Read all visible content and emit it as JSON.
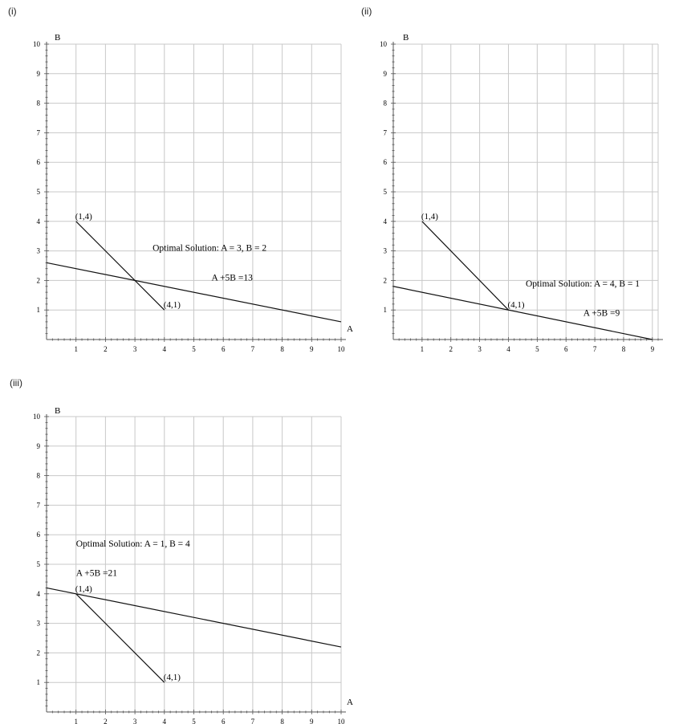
{
  "chart_data": [
    {
      "type": "line",
      "panel_label": "(i)",
      "xlabel": "A",
      "ylabel": "B",
      "xlim": [
        0,
        10
      ],
      "ylim": [
        0,
        10
      ],
      "grid": true,
      "x_ticks": [
        "1",
        "2",
        "3",
        "4",
        "5",
        "6",
        "7",
        "8",
        "9",
        "10"
      ],
      "y_ticks": [
        "1",
        "2",
        "3",
        "4",
        "5",
        "6",
        "7",
        "8",
        "9",
        "10"
      ],
      "series": [
        {
          "x": [
            1,
            4
          ],
          "y": [
            4,
            1
          ]
        },
        {
          "x": [
            0,
            10
          ],
          "y": [
            2.6,
            0.6
          ]
        }
      ],
      "points": [
        {
          "label": "(1,4)",
          "x": 1,
          "y": 4
        },
        {
          "label": "(4,1)",
          "x": 4,
          "y": 1
        }
      ],
      "annotations": [
        {
          "text": "Optimal Solution: A  = 3, B = 2",
          "x": 3.6,
          "y": 3.0
        },
        {
          "text": "A +5B =13",
          "x": 5.6,
          "y": 2.0
        }
      ]
    },
    {
      "type": "line",
      "panel_label": "(ii)",
      "xlabel": "",
      "ylabel": "B",
      "xlim": [
        0,
        9.2
      ],
      "ylim": [
        0,
        10
      ],
      "grid": true,
      "x_ticks": [
        "1",
        "2",
        "3",
        "4",
        "5",
        "6",
        "7",
        "8",
        "9"
      ],
      "y_ticks": [
        "1",
        "2",
        "3",
        "4",
        "5",
        "6",
        "7",
        "8",
        "9",
        "10"
      ],
      "series": [
        {
          "x": [
            1,
            4
          ],
          "y": [
            4,
            1
          ]
        },
        {
          "x": [
            0,
            9
          ],
          "y": [
            1.8,
            0
          ]
        }
      ],
      "points": [
        {
          "label": "(1,4)",
          "x": 1,
          "y": 4
        },
        {
          "label": "(4,1)",
          "x": 4,
          "y": 1
        }
      ],
      "annotations": [
        {
          "text": "Optimal Solution: A  = 4, B = 1",
          "x": 4.6,
          "y": 1.8
        },
        {
          "text": "A +5B =9",
          "x": 6.6,
          "y": 0.8
        }
      ]
    },
    {
      "type": "line",
      "panel_label": "(iii)",
      "xlabel": "A",
      "ylabel": "B",
      "xlim": [
        0,
        10
      ],
      "ylim": [
        0,
        10
      ],
      "grid": true,
      "x_ticks": [
        "1",
        "2",
        "3",
        "4",
        "5",
        "6",
        "7",
        "8",
        "9",
        "10"
      ],
      "y_ticks": [
        "1",
        "2",
        "3",
        "4",
        "5",
        "6",
        "7",
        "8",
        "9",
        "10"
      ],
      "series": [
        {
          "x": [
            1,
            4
          ],
          "y": [
            4,
            1
          ]
        },
        {
          "x": [
            0,
            10
          ],
          "y": [
            4.2,
            2.2
          ]
        }
      ],
      "points": [
        {
          "label": "(1,4)",
          "x": 1,
          "y": 4
        },
        {
          "label": "(4,1)",
          "x": 4,
          "y": 1
        }
      ],
      "annotations": [
        {
          "text": "Optimal Solution: A  = 1, B = 4",
          "x": 1.0,
          "y": 5.6
        },
        {
          "text": "A +5B =21",
          "x": 1.0,
          "y": 4.6
        }
      ]
    }
  ]
}
